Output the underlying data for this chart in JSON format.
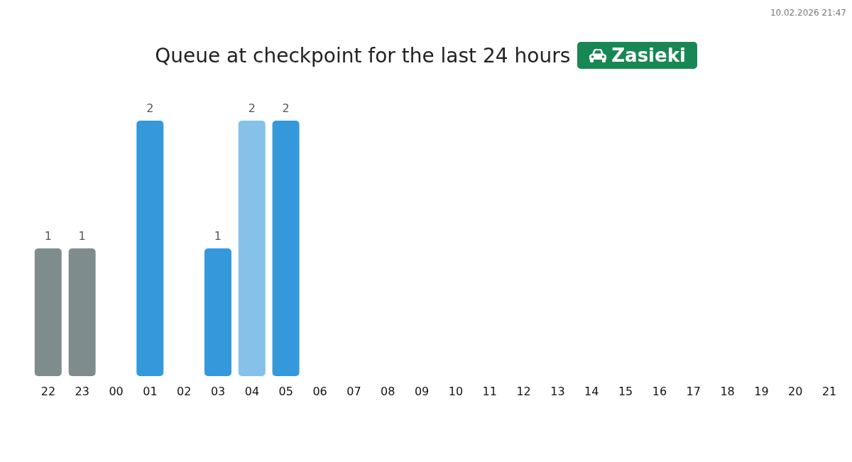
{
  "chart_data": {
    "type": "bar",
    "title": "Queue at checkpoint for the last 24 hours",
    "subtitle": "Zasieki",
    "annotations": [
      "10.02.2026 21:47"
    ],
    "categories": [
      "22",
      "23",
      "00",
      "01",
      "02",
      "03",
      "04",
      "05",
      "06",
      "07",
      "08",
      "09",
      "10",
      "11",
      "12",
      "13",
      "14",
      "15",
      "16",
      "17",
      "18",
      "19",
      "20",
      "21"
    ],
    "values": [
      1,
      1,
      null,
      2,
      null,
      1,
      2,
      2,
      null,
      null,
      null,
      null,
      null,
      null,
      null,
      null,
      null,
      null,
      null,
      null,
      null,
      null,
      null,
      null
    ],
    "colors": [
      "#7f8c8d",
      "#7f8c8d",
      "#3498db",
      "#3498db",
      "#3498db",
      "#3498db",
      "#85c1e9",
      "#3498db",
      "#3498db",
      "#3498db",
      "#3498db",
      "#3498db",
      "#3498db",
      "#3498db",
      "#3498db",
      "#3498db",
      "#3498db",
      "#3498db",
      "#3498db",
      "#3498db",
      "#3498db",
      "#3498db",
      "#3498db",
      "#3498db"
    ],
    "data_labels": true,
    "grid": false,
    "legend": false
  }
}
